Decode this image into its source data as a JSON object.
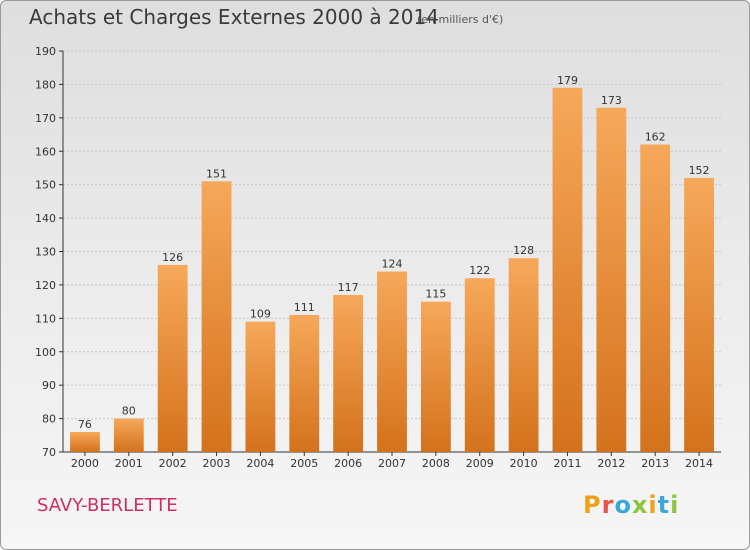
{
  "header": {
    "title": "Achats et Charges Externes 2000 à 2014",
    "subtitle": "(en milliers d'€)"
  },
  "footer": {
    "town": "SAVY-BERLETTE",
    "logo_text": "Proxiti",
    "logo_colors": [
      "#f0a01a",
      "#e8534a",
      "#3aa8d8",
      "#8cc63f",
      "#f0a01a",
      "#3aa8d8",
      "#8cc63f"
    ]
  },
  "colors": {
    "bar_top": "#f6a85a",
    "bar_bottom": "#d4721c",
    "grid": "#c8c8c8"
  },
  "chart_data": {
    "type": "bar",
    "title": "Achats et Charges Externes 2000 à 2014",
    "subtitle": "(en milliers d'€)",
    "xlabel": "",
    "ylabel": "",
    "ylim": [
      70,
      190
    ],
    "yticks": [
      70,
      80,
      90,
      100,
      110,
      120,
      130,
      140,
      150,
      160,
      170,
      180,
      190
    ],
    "categories": [
      "2000",
      "2001",
      "2002",
      "2003",
      "2004",
      "2005",
      "2006",
      "2007",
      "2008",
      "2009",
      "2010",
      "2011",
      "2012",
      "2013",
      "2014"
    ],
    "values": [
      76,
      80,
      126,
      151,
      109,
      111,
      117,
      124,
      115,
      122,
      128,
      179,
      173,
      162,
      152
    ],
    "grid": true
  }
}
